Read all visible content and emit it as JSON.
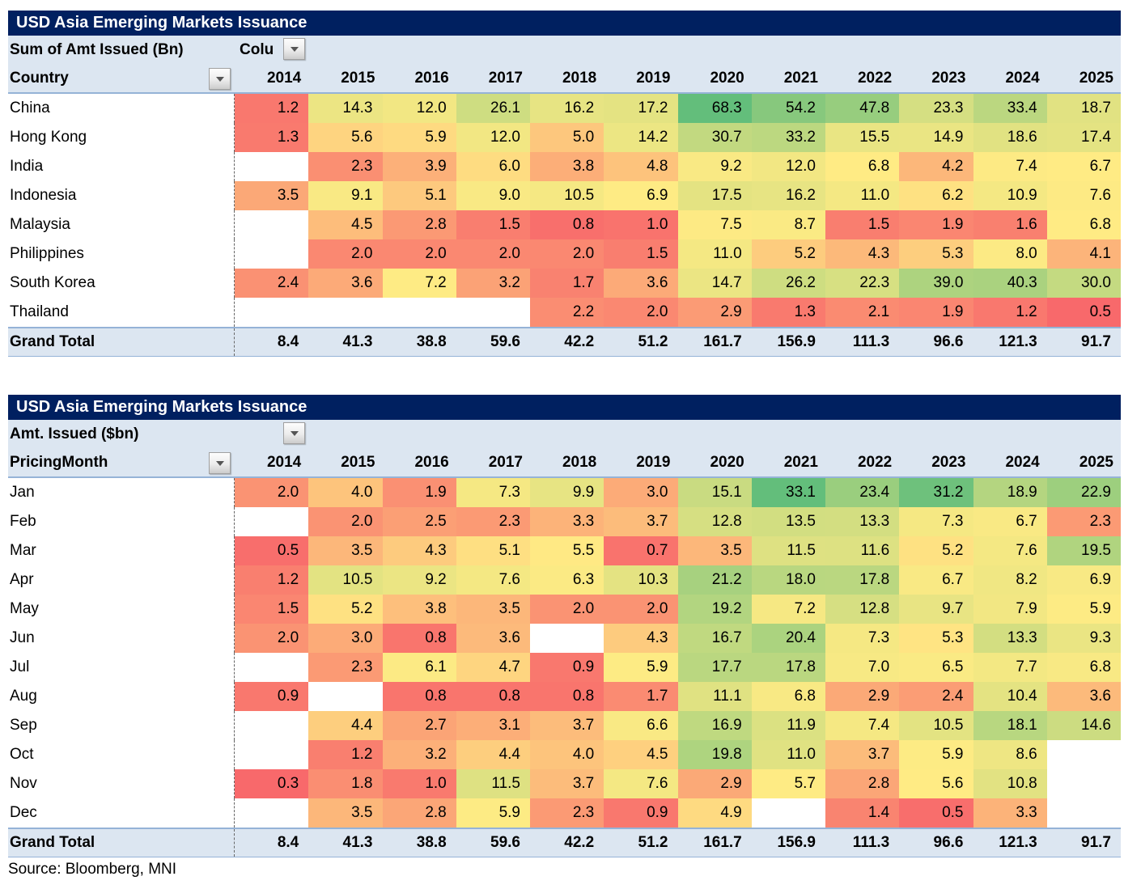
{
  "source": "Source: Bloomberg, MNI",
  "years": [
    "2014",
    "2015",
    "2016",
    "2017",
    "2018",
    "2019",
    "2020",
    "2021",
    "2022",
    "2023",
    "2024",
    "2025"
  ],
  "colorscale": {
    "min": "#F8696B",
    "mid": "#FFEB84",
    "max": "#63BE7B",
    "blank": "#FFFFFF"
  },
  "colors": {
    "title_bg": "#002060",
    "title_fg": "#FFFFFF",
    "band_bg": "#DCE6F1",
    "separator_blue": "#95B3D7"
  },
  "table1": {
    "title": "USD Asia Emerging Markets Issuance",
    "field_label": "Sum of Amt Issued (Bn)",
    "columns_label": "Colu",
    "row_header": "Country",
    "rows": [
      {
        "label": "China",
        "values": [
          1.2,
          14.3,
          12.0,
          26.1,
          16.2,
          17.2,
          68.3,
          54.2,
          47.8,
          23.3,
          33.4,
          18.7
        ]
      },
      {
        "label": "Hong Kong",
        "values": [
          1.3,
          5.6,
          5.9,
          12.0,
          5.0,
          14.2,
          30.7,
          33.2,
          15.5,
          14.9,
          18.6,
          17.4
        ]
      },
      {
        "label": "India",
        "values": [
          null,
          2.3,
          3.9,
          6.0,
          3.8,
          4.8,
          9.2,
          12.0,
          6.8,
          4.2,
          7.4,
          6.7
        ]
      },
      {
        "label": "Indonesia",
        "values": [
          3.5,
          9.1,
          5.1,
          9.0,
          10.5,
          6.9,
          17.5,
          16.2,
          11.0,
          6.2,
          10.9,
          7.6
        ]
      },
      {
        "label": "Malaysia",
        "values": [
          null,
          4.5,
          2.8,
          1.5,
          0.8,
          1.0,
          7.5,
          8.7,
          1.5,
          1.9,
          1.6,
          6.8
        ]
      },
      {
        "label": "Philippines",
        "values": [
          null,
          2.0,
          2.0,
          2.0,
          2.0,
          1.5,
          11.0,
          5.2,
          4.3,
          5.3,
          8.0,
          4.1
        ]
      },
      {
        "label": "South Korea",
        "values": [
          2.4,
          3.6,
          7.2,
          3.2,
          1.7,
          3.6,
          14.7,
          26.2,
          22.3,
          39.0,
          40.3,
          30.0
        ]
      },
      {
        "label": "Thailand",
        "values": [
          null,
          null,
          null,
          null,
          2.2,
          2.0,
          2.9,
          1.3,
          2.1,
          1.9,
          1.2,
          0.5
        ]
      }
    ],
    "grand_total": {
      "label": "Grand Total",
      "values": [
        8.4,
        41.3,
        38.8,
        59.6,
        42.2,
        51.2,
        161.7,
        156.9,
        111.3,
        96.6,
        121.3,
        91.7
      ]
    }
  },
  "table2": {
    "title": "USD Asia Emerging Markets Issuance",
    "field_label": "Amt. Issued ($bn)",
    "columns_label": "",
    "row_header": "PricingMonth",
    "rows": [
      {
        "label": "Jan",
        "values": [
          2.0,
          4.0,
          1.9,
          7.3,
          9.9,
          3.0,
          15.1,
          33.1,
          23.4,
          31.2,
          18.9,
          22.9
        ]
      },
      {
        "label": "Feb",
        "values": [
          null,
          2.0,
          2.5,
          2.3,
          3.3,
          3.7,
          12.8,
          13.5,
          13.3,
          7.3,
          6.7,
          2.3
        ]
      },
      {
        "label": "Mar",
        "values": [
          0.5,
          3.5,
          4.3,
          5.1,
          5.5,
          0.7,
          3.5,
          11.5,
          11.6,
          5.2,
          7.6,
          19.5
        ]
      },
      {
        "label": "Apr",
        "values": [
          1.2,
          10.5,
          9.2,
          7.6,
          6.3,
          10.3,
          21.2,
          18.0,
          17.8,
          6.7,
          8.2,
          6.9
        ]
      },
      {
        "label": "May",
        "values": [
          1.5,
          5.2,
          3.8,
          3.5,
          2.0,
          2.0,
          19.2,
          7.2,
          12.8,
          9.7,
          7.9,
          5.9
        ]
      },
      {
        "label": "Jun",
        "values": [
          2.0,
          3.0,
          0.8,
          3.6,
          null,
          4.3,
          16.7,
          20.4,
          7.3,
          5.3,
          13.3,
          9.3
        ]
      },
      {
        "label": "Jul",
        "values": [
          null,
          2.3,
          6.1,
          4.7,
          0.9,
          5.9,
          17.7,
          17.8,
          7.0,
          6.5,
          7.7,
          6.8
        ]
      },
      {
        "label": "Aug",
        "values": [
          0.9,
          null,
          0.8,
          0.8,
          0.8,
          1.7,
          11.1,
          6.8,
          2.9,
          2.4,
          10.4,
          3.6
        ]
      },
      {
        "label": "Sep",
        "values": [
          null,
          4.4,
          2.7,
          3.1,
          3.7,
          6.6,
          16.9,
          11.9,
          7.4,
          10.5,
          18.1,
          14.6
        ]
      },
      {
        "label": "Oct",
        "values": [
          null,
          1.2,
          3.2,
          4.4,
          4.0,
          4.5,
          19.8,
          11.0,
          3.7,
          5.9,
          8.6,
          null
        ]
      },
      {
        "label": "Nov",
        "values": [
          0.3,
          1.8,
          1.0,
          11.5,
          3.7,
          7.6,
          2.9,
          5.7,
          2.8,
          5.6,
          10.8,
          null
        ]
      },
      {
        "label": "Dec",
        "values": [
          null,
          3.5,
          2.8,
          5.9,
          2.3,
          0.9,
          4.9,
          null,
          1.4,
          0.5,
          3.3,
          null
        ]
      }
    ],
    "grand_total": {
      "label": "Grand Total",
      "values": [
        8.4,
        41.3,
        38.8,
        59.6,
        42.2,
        51.2,
        161.7,
        156.9,
        111.3,
        96.6,
        121.3,
        91.7
      ]
    }
  }
}
